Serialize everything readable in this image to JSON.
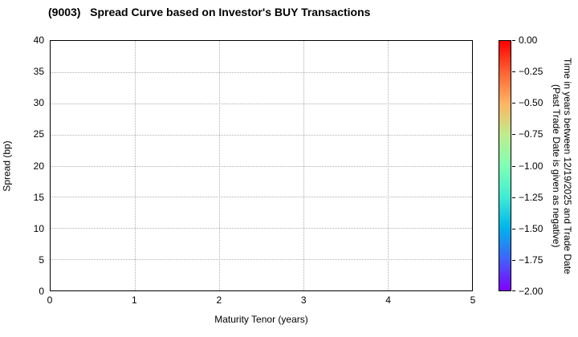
{
  "chart_data": {
    "type": "scatter",
    "title": "(9003)   Spread Curve based on Investor's BUY Transactions",
    "xlabel": "Maturity Tenor (years)",
    "ylabel": "Spread (bp)",
    "xlim": [
      0,
      5
    ],
    "ylim": [
      0,
      40
    ],
    "xticks": [
      0,
      1,
      2,
      3,
      4,
      5
    ],
    "yticks": [
      0,
      5,
      10,
      15,
      20,
      25,
      30,
      35,
      40
    ],
    "grid": true,
    "grid_style": "dotted",
    "points": [],
    "colorbar": {
      "label_line1": "Time in years between 12/19/2025 and Trade Date",
      "label_line2": "(Past Trade Date is given as negative)",
      "tick_labels": [
        "0.00",
        "−0.25",
        "−0.50",
        "−0.75",
        "−1.00",
        "−1.25",
        "−1.50",
        "−1.75",
        "−2.00"
      ],
      "vmax": 0.0,
      "vmin": -2.0,
      "colormap": "rainbow_r",
      "gradient_stops": [
        "#ff0000",
        "#ff6232",
        "#ffb462",
        "#bfec8d",
        "#80ffb4",
        "#40ecd4",
        "#00b4ec",
        "#4062fa",
        "#8000ff"
      ]
    },
    "colors": {
      "grid": "#b0b0b0",
      "axis": "#000000",
      "text": "#000000",
      "background": "#ffffff"
    }
  }
}
